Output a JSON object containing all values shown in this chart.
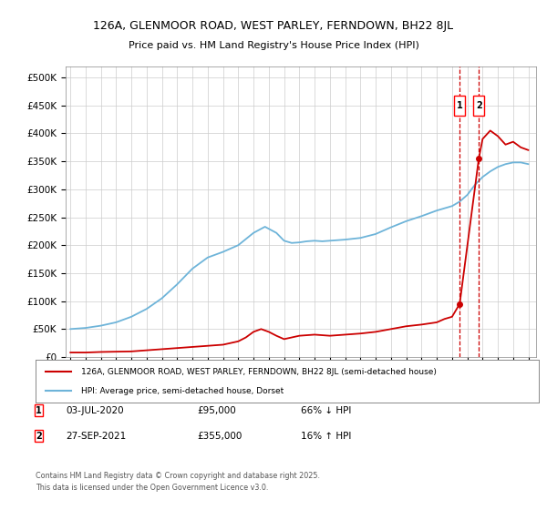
{
  "title1": "126A, GLENMOOR ROAD, WEST PARLEY, FERNDOWN, BH22 8JL",
  "title2": "Price paid vs. HM Land Registry's House Price Index (HPI)",
  "ylabel_ticks": [
    "£0",
    "£50K",
    "£100K",
    "£150K",
    "£200K",
    "£250K",
    "£300K",
    "£350K",
    "£400K",
    "£450K",
    "£500K"
  ],
  "ytick_vals": [
    0,
    50000,
    100000,
    150000,
    200000,
    250000,
    300000,
    350000,
    400000,
    450000,
    500000
  ],
  "ylim": [
    0,
    520000
  ],
  "hpi_color": "#6eb4d9",
  "price_color": "#cc0000",
  "sale1_x": 2020.5,
  "sale1_price": 95000,
  "sale2_x": 2021.75,
  "sale2_price": 355000,
  "sale1_label": "03-JUL-2020",
  "sale1_price_str": "£95,000",
  "sale1_pct": "66% ↓ HPI",
  "sale2_label": "27-SEP-2021",
  "sale2_price_str": "£355,000",
  "sale2_pct": "16% ↑ HPI",
  "legend1": "126A, GLENMOOR ROAD, WEST PARLEY, FERNDOWN, BH22 8JL (semi-detached house)",
  "legend2": "HPI: Average price, semi-detached house, Dorset",
  "footnote": "Contains HM Land Registry data © Crown copyright and database right 2025.\nThis data is licensed under the Open Government Licence v3.0.",
  "xstart": 1995,
  "xend": 2025
}
